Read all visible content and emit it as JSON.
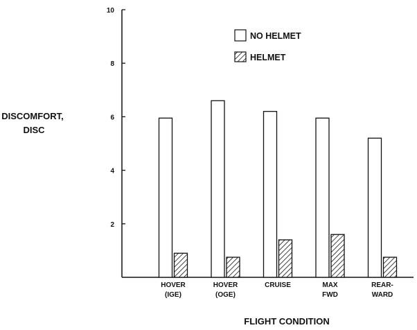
{
  "chart_data": {
    "type": "bar",
    "title": "",
    "xlabel": "FLIGHT CONDITION",
    "ylabel": [
      "DISCOMFORT,",
      "DISC"
    ],
    "ylim": [
      0,
      10
    ],
    "yticks": [
      2,
      4,
      6,
      8,
      10
    ],
    "grid": false,
    "legend_position": "top-center",
    "categories": [
      [
        "HOVER",
        "(IGE)"
      ],
      [
        "HOVER",
        "(OGE)"
      ],
      [
        "CRUISE"
      ],
      [
        "MAX",
        "FWD"
      ],
      [
        "REAR-",
        "WARD"
      ]
    ],
    "series": [
      {
        "name": "NO HELMET",
        "pattern": "open",
        "values": [
          5.95,
          6.6,
          6.2,
          5.95,
          5.2
        ]
      },
      {
        "name": "HELMET",
        "pattern": "hatched",
        "values": [
          0.9,
          0.75,
          1.4,
          1.6,
          0.75
        ]
      }
    ],
    "colors": {
      "ink": "#111111",
      "background": "#ffffff"
    }
  }
}
